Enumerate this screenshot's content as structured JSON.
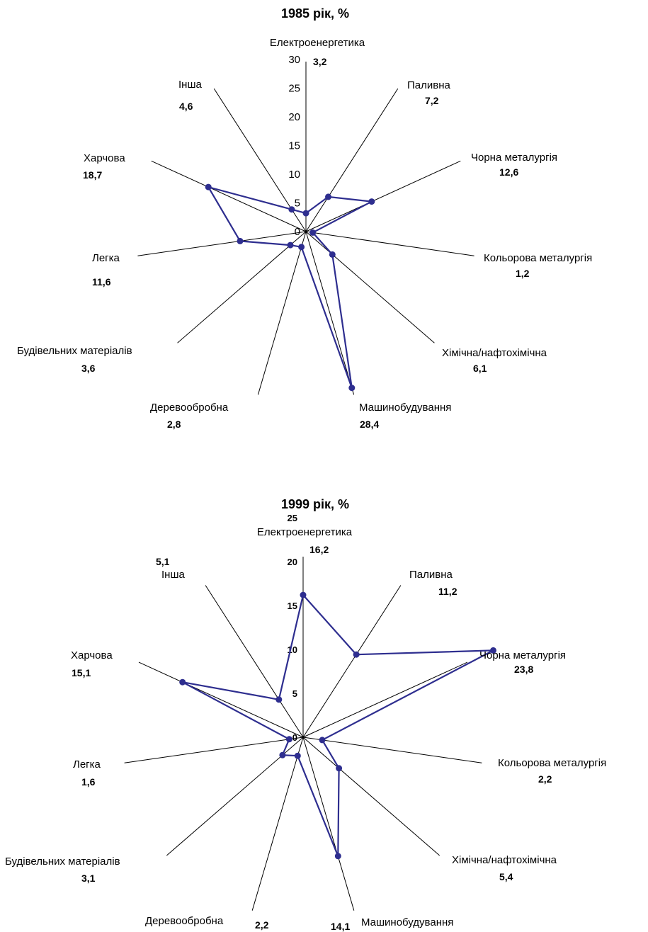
{
  "colors": {
    "series": "#2e2e8f",
    "axis": "#000000"
  },
  "chart_data": [
    {
      "type": "radar",
      "title": "1985 рік, %",
      "categories": [
        "Електроенергетика",
        "Паливна",
        "Чорна металургія",
        "Кольорова металургія",
        "Хімічна/нафтохімічна",
        "Машинобудування",
        "Деревообробна",
        "Будівельних матеріалів",
        "Легка",
        "Харчова",
        "Інша"
      ],
      "value_labels": [
        "3,2",
        "7,2",
        "12,6",
        "1,2",
        "6,1",
        "28,4",
        "2,8",
        "3,6",
        "11,6",
        "18,7",
        "4,6"
      ],
      "series": [
        {
          "values": [
            3.2,
            7.2,
            12.6,
            1.2,
            6.1,
            28.4,
            2.8,
            3.6,
            11.6,
            18.7,
            4.6
          ]
        }
      ],
      "r_ticks": [
        "0",
        "5",
        "10",
        "15",
        "20",
        "25",
        "30"
      ],
      "rlim": [
        0,
        30
      ]
    },
    {
      "type": "radar",
      "title": "1999 рік, %",
      "categories": [
        "Електроенергетика",
        "Паливна",
        "Чорна металургія",
        "Кольорова металургія",
        "Хімічна/нафтохімічна",
        "Машинобудування",
        "Деревообробна",
        "Будівельних матеріалів",
        "Легка",
        "Харчова",
        "Інша"
      ],
      "value_labels": [
        "16,2",
        "11,2",
        "23,8",
        "2,2",
        "5,4",
        "14,1",
        "2,2",
        "3,1",
        "1,6",
        "15,1",
        "5,1"
      ],
      "series": [
        {
          "values": [
            16.2,
            11.2,
            23.8,
            2.2,
            5.4,
            14.1,
            2.2,
            3.1,
            1.6,
            15.1,
            5.1
          ]
        }
      ],
      "r_ticks": [
        "0",
        "5",
        "10",
        "15",
        "20",
        "25"
      ],
      "rlim": [
        0,
        25
      ]
    }
  ]
}
